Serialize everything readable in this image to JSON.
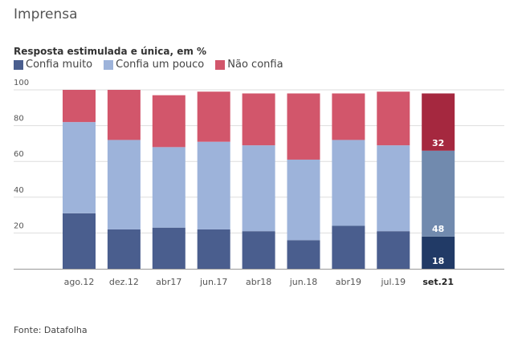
{
  "header": {
    "title": "Imprensa",
    "subtitle": "Resposta estimulada e única, em %",
    "source": "Fonte: Datafolha"
  },
  "colors": {
    "confia_muito": "#4a5e8e",
    "confia_um_pouco": "#9db3da",
    "nao_confia": "#d2566b",
    "confia_muito_highlight": "#213a66",
    "confia_um_pouco_highlight": "#718aae",
    "nao_confia_highlight": "#a5283f",
    "grid": "#dddddd",
    "axis": "#999999"
  },
  "chart_data": {
    "type": "bar",
    "stacked": true,
    "title": "Imprensa",
    "subtitle": "Resposta estimulada e única, em %",
    "xlabel": "",
    "ylabel": "",
    "ylim": [
      0,
      100
    ],
    "yticks": [
      20,
      40,
      60,
      80,
      100
    ],
    "grid": true,
    "legend_position": "top-left",
    "categories": [
      "ago.12",
      "dez.12",
      "abr17",
      "jun.17",
      "abr18",
      "jun.18",
      "abr19",
      "jul.19",
      "set.21"
    ],
    "highlight_category": "set.21",
    "series": [
      {
        "name": "Confia muito",
        "key": "confia_muito",
        "values": [
          31,
          22,
          23,
          22,
          21,
          16,
          24,
          21,
          18
        ]
      },
      {
        "name": "Confia um pouco",
        "key": "confia_um_pouco",
        "values": [
          51,
          50,
          45,
          49,
          48,
          45,
          48,
          48,
          48
        ]
      },
      {
        "name": "Não confia",
        "key": "nao_confia",
        "values": [
          18,
          28,
          29,
          28,
          29,
          37,
          26,
          30,
          32
        ]
      }
    ],
    "data_labels": {
      "category": "set.21",
      "values": [
        18,
        48,
        32
      ]
    }
  }
}
